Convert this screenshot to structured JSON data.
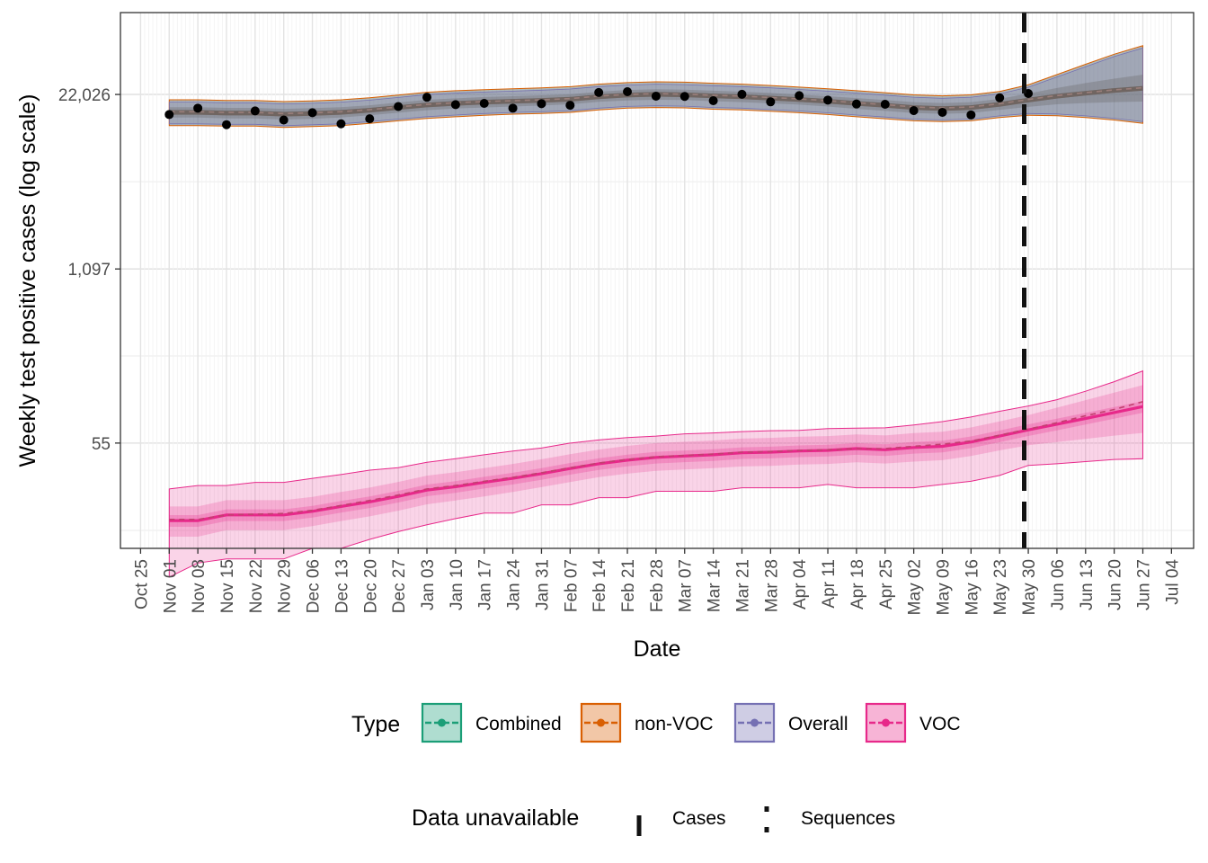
{
  "chart_data": {
    "type": "line",
    "xlabel": "Date",
    "ylabel": "Weekly test positive cases (log scale)",
    "y_scale": "log",
    "y_ticks": [
      {
        "value": 55,
        "label": "55"
      },
      {
        "value": 1097,
        "label": "1,097"
      },
      {
        "value": 22026,
        "label": "22,026"
      }
    ],
    "ylim": [
      9,
      90000
    ],
    "x_ticks": [
      "Oct 25",
      "Nov 01",
      "Nov 08",
      "Nov 15",
      "Nov 22",
      "Nov 29",
      "Dec 06",
      "Dec 13",
      "Dec 20",
      "Dec 27",
      "Jan 03",
      "Jan 10",
      "Jan 17",
      "Jan 24",
      "Jan 31",
      "Feb 07",
      "Feb 14",
      "Feb 21",
      "Feb 28",
      "Mar 07",
      "Mar 14",
      "Mar 21",
      "Mar 28",
      "Apr 04",
      "Apr 11",
      "Apr 18",
      "Apr 25",
      "May 02",
      "May 09",
      "May 16",
      "May 23",
      "May 30",
      "Jun 06",
      "Jun 13",
      "Jun 20",
      "Jun 27",
      "Jul 04"
    ],
    "grid": true,
    "cases_unavailable_after": "May 29",
    "observed_weeks": [
      "Nov 01",
      "Nov 08",
      "Nov 15",
      "Nov 22",
      "Nov 29",
      "Dec 06",
      "Dec 13",
      "Dec 20",
      "Dec 27",
      "Jan 03",
      "Jan 10",
      "Jan 17",
      "Jan 24",
      "Jan 31",
      "Feb 07",
      "Feb 14",
      "Feb 21",
      "Feb 28",
      "Mar 07",
      "Mar 14",
      "Mar 21",
      "Mar 28",
      "Apr 04",
      "Apr 11",
      "Apr 18",
      "Apr 25",
      "May 02",
      "May 09",
      "May 16",
      "May 23",
      "May 30"
    ],
    "observed_overall_cases": [
      15600,
      17400,
      13100,
      16600,
      14200,
      16100,
      13300,
      14500,
      17900,
      21000,
      18500,
      18900,
      17400,
      18800,
      18300,
      22800,
      23100,
      21400,
      21300,
      19800,
      22100,
      19400,
      21600,
      20000,
      18700,
      18600,
      16700,
      16200,
      15500,
      20800,
      22400
    ],
    "forecast_weeks": [
      "Nov 01",
      "Nov 08",
      "Nov 15",
      "Nov 22",
      "Nov 29",
      "Dec 06",
      "Dec 13",
      "Dec 20",
      "Dec 27",
      "Jan 03",
      "Jan 10",
      "Jan 17",
      "Jan 24",
      "Jan 31",
      "Feb 07",
      "Feb 14",
      "Feb 21",
      "Feb 28",
      "Mar 07",
      "Mar 14",
      "Mar 21",
      "Mar 28",
      "Apr 04",
      "Apr 11",
      "Apr 18",
      "Apr 25",
      "May 02",
      "May 09",
      "May 16",
      "May 23",
      "May 30",
      "Jun 06",
      "Jun 13",
      "Jun 20",
      "Jun 27"
    ],
    "series": [
      {
        "name": "Overall",
        "color": "#7570B3",
        "median": [
          16200,
          16200,
          16000,
          16000,
          15700,
          15900,
          16200,
          16800,
          17600,
          18400,
          18900,
          19300,
          19600,
          19900,
          20300,
          21200,
          21800,
          22100,
          21900,
          21500,
          21200,
          20700,
          20200,
          19600,
          18900,
          18300,
          17600,
          17300,
          17600,
          18600,
          20000,
          21400,
          22500,
          23600,
          24500
        ],
        "inner_lo": [
          14800,
          14800,
          14600,
          14600,
          14300,
          14500,
          14800,
          15400,
          16100,
          16800,
          17300,
          17600,
          17900,
          18200,
          18600,
          19400,
          19900,
          20100,
          20000,
          19600,
          19300,
          18900,
          18500,
          17900,
          17200,
          16600,
          16000,
          15800,
          16000,
          16900,
          17800,
          18600,
          19000,
          19300,
          19500
        ],
        "inner_hi": [
          17700,
          17700,
          17500,
          17500,
          17200,
          17400,
          17700,
          18300,
          19200,
          20100,
          20600,
          21100,
          21400,
          21700,
          22100,
          23100,
          23800,
          24100,
          23900,
          23500,
          23100,
          22600,
          22000,
          21400,
          20700,
          20000,
          19300,
          19000,
          19300,
          20400,
          22400,
          24600,
          26800,
          28900,
          31000
        ],
        "outer_lo": [
          12900,
          12900,
          12800,
          12800,
          12500,
          12700,
          12900,
          13400,
          14000,
          14600,
          15000,
          15400,
          15700,
          15900,
          16200,
          16900,
          17400,
          17600,
          17500,
          17100,
          16900,
          16500,
          16100,
          15600,
          15000,
          14500,
          14000,
          13800,
          14000,
          14800,
          15400,
          15300,
          14800,
          14200,
          13400
        ],
        "outer_hi": [
          20100,
          20100,
          19900,
          19900,
          19500,
          19700,
          20100,
          20800,
          21800,
          22900,
          23500,
          23900,
          24300,
          24700,
          25200,
          26300,
          27000,
          27400,
          27200,
          26700,
          26300,
          25700,
          25000,
          24300,
          23500,
          22700,
          21900,
          21500,
          21900,
          23200,
          26000,
          31000,
          37000,
          44000,
          51000
        ]
      },
      {
        "name": "VOC",
        "color": "#E7298A",
        "median": [
          14.5,
          14.5,
          16,
          16,
          16,
          17,
          18.5,
          20,
          22,
          24.5,
          26,
          28,
          30,
          32.5,
          35.5,
          38.5,
          41,
          43,
          44,
          45,
          46.5,
          47,
          48,
          48.5,
          50,
          49,
          51,
          52,
          56,
          62,
          69,
          76,
          84,
          93,
          103
        ],
        "median_dashed": [
          14.8,
          14.8,
          16,
          16.2,
          16.4,
          17.3,
          18.8,
          20.5,
          22.5,
          25,
          26.5,
          28.5,
          30.5,
          33,
          36,
          39,
          41.5,
          43.5,
          44.5,
          45.5,
          47,
          47.5,
          48.5,
          49,
          50,
          50,
          52,
          54,
          57,
          63,
          70,
          78,
          88,
          98,
          112
        ],
        "inner_lo": [
          11,
          11,
          12.3,
          12.3,
          12.3,
          13.2,
          14.4,
          15.6,
          17.2,
          19.2,
          20.5,
          22,
          23.7,
          25.8,
          28.1,
          30.6,
          32.5,
          34.1,
          34.9,
          35.7,
          36.8,
          37.2,
          38,
          38.4,
          39.5,
          38.7,
          40,
          41,
          44,
          48.5,
          53,
          56,
          59,
          62.5,
          65.5
        ],
        "inner_hi": [
          18.5,
          18.5,
          20.6,
          20.6,
          20.6,
          21.8,
          23.7,
          25.6,
          28.2,
          31.4,
          33.3,
          35.8,
          38.4,
          41.6,
          45.4,
          49.2,
          52.4,
          55,
          56.3,
          57.5,
          59.4,
          60.1,
          61.4,
          62,
          63.9,
          62.7,
          65.3,
          66.8,
          71.9,
          79.8,
          89,
          101,
          115,
          131,
          149
        ],
        "outer_lo": [
          5.5,
          7,
          7.5,
          7.5,
          7.5,
          9,
          9,
          10.5,
          12,
          13.5,
          15,
          16.5,
          16.5,
          19,
          19,
          21.5,
          21.5,
          24,
          24,
          24,
          25.5,
          25.5,
          25.5,
          27,
          25.5,
          25.5,
          25.5,
          27,
          28.5,
          31.5,
          37.5,
          38.5,
          40,
          41.5,
          42
        ],
        "outer_hi": [
          25,
          26.5,
          26.5,
          28,
          28,
          30,
          32,
          34.5,
          36,
          39.5,
          42,
          45,
          48,
          50.5,
          55,
          58,
          60.5,
          62,
          64.5,
          65.5,
          67,
          68,
          68.5,
          70.5,
          71,
          71.5,
          75,
          79.5,
          86,
          95,
          104,
          116,
          134,
          158,
          190
        ]
      }
    ],
    "legends": [
      {
        "title": "Type",
        "entries": [
          {
            "label": "Combined",
            "color": "#1B9E77"
          },
          {
            "label": "non-VOC",
            "color": "#D95F02"
          },
          {
            "label": "Overall",
            "color": "#7570B3"
          },
          {
            "label": "VOC",
            "color": "#E7298A"
          }
        ]
      },
      {
        "title": "Data unavailable",
        "entries": [
          {
            "label": "Cases",
            "linetype": "dashed"
          },
          {
            "label": "Sequences",
            "linetype": "dotted"
          }
        ]
      }
    ]
  }
}
